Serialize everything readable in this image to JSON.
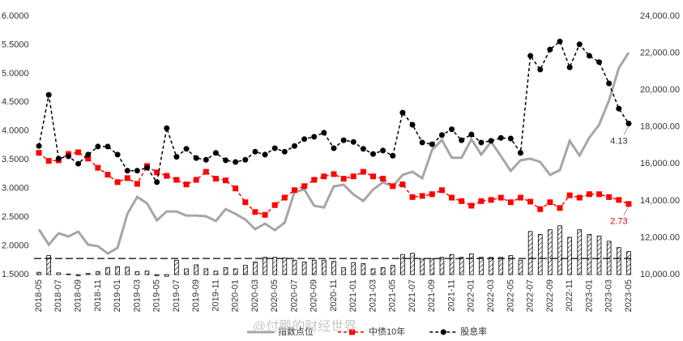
{
  "chart_data": {
    "type": "line",
    "categories": [
      "2018-05",
      null,
      "2018-07",
      null,
      "2018-09",
      null,
      "2018-11",
      null,
      "2019-01",
      null,
      "2019-03",
      null,
      "2019-05",
      null,
      "2019-07",
      null,
      "2019-09",
      null,
      "2019-11",
      null,
      "2020-01",
      null,
      "2020-03",
      null,
      "2020-05",
      null,
      "2020-07",
      null,
      "2020-09",
      null,
      "2020-11",
      null,
      "2021-01",
      null,
      "2021-03",
      null,
      "2021-05",
      null,
      "2021-07",
      null,
      "2021-09",
      null,
      "2021-11",
      null,
      "2022-01",
      null,
      "2022-03",
      null,
      "2022-05",
      null,
      "2022-07",
      null,
      "2022-09",
      null,
      "2022-11",
      null,
      "2023-01",
      null,
      "2023-03",
      null,
      "2023-05"
    ],
    "series": [
      {
        "type": "bar",
        "color": "#000000",
        "values": [
          1.54,
          1.83,
          1.53,
          1.51,
          1.48,
          1.52,
          1.55,
          1.62,
          1.64,
          1.63,
          1.55,
          1.56,
          1.48,
          1.47,
          1.75,
          1.6,
          1.67,
          1.6,
          1.56,
          1.62,
          1.6,
          1.66,
          1.72,
          1.8,
          1.8,
          1.79,
          1.75,
          1.72,
          1.75,
          1.75,
          1.73,
          1.62,
          1.71,
          1.69,
          1.6,
          1.62,
          1.66,
          1.85,
          1.87,
          1.77,
          1.78,
          1.8,
          1.85,
          1.8,
          1.86,
          1.8,
          1.8,
          1.8,
          1.83,
          1.75,
          2.25,
          2.2,
          2.28,
          2.35,
          2.15,
          2.28,
          2.2,
          2.17,
          2.08,
          1.97,
          1.9
        ]
      },
      {
        "name": "指数点位",
        "type": "line",
        "axis": "y2",
        "color": "#a6a6a6",
        "values": [
          12450,
          11620,
          12240,
          12060,
          12330,
          11620,
          11540,
          11140,
          11450,
          13290,
          14210,
          13860,
          12940,
          13420,
          13420,
          13200,
          13200,
          13160,
          12900,
          13550,
          13290,
          12980,
          12460,
          12760,
          12410,
          12810,
          14480,
          14610,
          13730,
          13640,
          14780,
          14870,
          14340,
          13990,
          14610,
          15000,
          14780,
          15400,
          15570,
          15220,
          16760,
          17290,
          16330,
          16330,
          17330,
          16500,
          17200,
          16420,
          15620,
          16190,
          16280,
          16100,
          15400,
          15660,
          17240,
          16450,
          17420,
          18120,
          19440,
          21190,
          22030
        ]
      },
      {
        "name": "中债10年",
        "type": "line",
        "dashed": true,
        "marker": "square",
        "color": "#ff0000",
        "values": [
          3.62,
          3.48,
          3.49,
          3.6,
          3.63,
          3.52,
          3.36,
          3.24,
          3.11,
          3.18,
          3.08,
          3.39,
          3.28,
          3.22,
          3.15,
          3.07,
          3.15,
          3.29,
          3.17,
          3.14,
          3.0,
          2.76,
          2.59,
          2.54,
          2.71,
          2.84,
          2.97,
          3.04,
          3.15,
          3.21,
          3.25,
          3.17,
          3.21,
          3.29,
          3.21,
          3.17,
          3.04,
          3.07,
          2.85,
          2.87,
          2.9,
          2.97,
          2.84,
          2.78,
          2.7,
          2.78,
          2.8,
          2.84,
          2.76,
          2.84,
          2.77,
          2.64,
          2.76,
          2.66,
          2.88,
          2.84,
          2.9,
          2.9,
          2.85,
          2.8,
          2.73
        ]
      },
      {
        "name": "股息率",
        "type": "line",
        "dashed": true,
        "marker": "circle",
        "color": "#000000",
        "values": [
          3.74,
          4.63,
          3.52,
          3.56,
          3.43,
          3.59,
          3.73,
          3.73,
          3.59,
          3.31,
          3.31,
          3.36,
          3.11,
          4.05,
          3.55,
          3.69,
          3.53,
          3.5,
          3.62,
          3.49,
          3.46,
          3.5,
          3.64,
          3.59,
          3.7,
          3.64,
          3.74,
          3.86,
          3.9,
          3.97,
          3.7,
          3.84,
          3.81,
          3.69,
          3.6,
          3.66,
          3.57,
          4.32,
          4.11,
          3.8,
          3.77,
          3.93,
          4.03,
          3.84,
          3.94,
          3.8,
          3.83,
          3.88,
          3.87,
          3.62,
          5.31,
          5.07,
          5.42,
          5.56,
          5.11,
          5.51,
          5.31,
          5.2,
          4.83,
          4.39,
          4.13
        ]
      }
    ],
    "hline": 1.78,
    "ylim": [
      1.5,
      6.0
    ],
    "yticks": [
      {
        "value": 1.5,
        "label": "1.5000"
      },
      {
        "value": 2.0,
        "label": "2.0000"
      },
      {
        "value": 2.5,
        "label": "2.5000"
      },
      {
        "value": 3.0,
        "label": "3.0000"
      },
      {
        "value": 3.5,
        "label": "3.5000"
      },
      {
        "value": 4.0,
        "label": "4.0000"
      },
      {
        "value": 4.5,
        "label": "4.5000"
      },
      {
        "value": 5.0,
        "label": "5.0000"
      },
      {
        "value": 5.5,
        "label": "5.5000"
      },
      {
        "value": 6.0,
        "label": "6.0000"
      }
    ],
    "y2lim": [
      10000,
      24000
    ],
    "y2ticks": [
      {
        "value": 10000,
        "label": "10,000.00"
      },
      {
        "value": 12000,
        "label": "12,000.00"
      },
      {
        "value": 14000,
        "label": "14,000.00"
      },
      {
        "value": 16000,
        "label": "16,000.00"
      },
      {
        "value": 18000,
        "label": "18,000.00"
      },
      {
        "value": 20000,
        "label": "20,000.00"
      },
      {
        "value": 22000,
        "label": "22,000.00"
      },
      {
        "value": 24000,
        "label": "24,000.00"
      }
    ],
    "annotations": [
      {
        "text": "4.13",
        "series": 3,
        "index": 60
      },
      {
        "text": "2.73",
        "series": 2,
        "index": 60
      }
    ],
    "watermark": "@付鹏的财经世界"
  }
}
